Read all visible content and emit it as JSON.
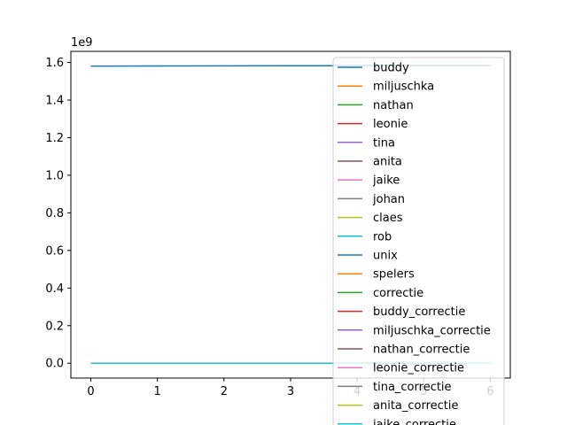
{
  "chart_data": {
    "type": "line",
    "title": "",
    "xlabel": "",
    "ylabel": "",
    "y_offset_label": "1e9",
    "xlim": [
      -0.3,
      6.3
    ],
    "ylim": [
      -0.079,
      1.659
    ],
    "x_ticks": [
      0,
      1,
      2,
      3,
      4,
      5,
      6
    ],
    "x_tick_labels": [
      "0",
      "1",
      "2",
      "3",
      "4",
      "5",
      "6"
    ],
    "y_ticks": [
      0.0,
      0.2,
      0.4,
      0.6,
      0.8,
      1.0,
      1.2,
      1.4,
      1.6
    ],
    "y_tick_labels": [
      "0.0",
      "0.2",
      "0.4",
      "0.6",
      "0.8",
      "1.0",
      "1.2",
      "1.4",
      "1.6"
    ],
    "legend_position": "upper-right",
    "grid": false,
    "x": [
      0,
      1,
      2,
      3,
      4,
      5,
      6
    ],
    "series": [
      {
        "name": "buddy",
        "color": "#1f77b4",
        "values": [
          0,
          0,
          0,
          0,
          0,
          0,
          0
        ]
      },
      {
        "name": "miljuschka",
        "color": "#ff7f0e",
        "values": [
          0,
          0,
          0,
          0,
          0,
          0,
          0
        ]
      },
      {
        "name": "nathan",
        "color": "#2ca02c",
        "values": [
          0,
          0,
          0,
          0,
          0,
          0,
          0
        ]
      },
      {
        "name": "leonie",
        "color": "#d62728",
        "values": [
          0,
          0,
          0,
          0,
          0,
          0,
          0
        ]
      },
      {
        "name": "tina",
        "color": "#9467bd",
        "values": [
          0,
          0,
          0,
          0,
          0,
          0,
          0
        ]
      },
      {
        "name": "anita",
        "color": "#8c564b",
        "values": [
          0,
          0,
          0,
          0,
          0,
          0,
          0
        ]
      },
      {
        "name": "jaike",
        "color": "#e377c2",
        "values": [
          0,
          0,
          0,
          0,
          0,
          0,
          0
        ]
      },
      {
        "name": "johan",
        "color": "#7f7f7f",
        "values": [
          0,
          0,
          0,
          0,
          0,
          0,
          0
        ]
      },
      {
        "name": "claes",
        "color": "#bcbd22",
        "values": [
          0,
          0,
          0,
          0,
          0,
          0,
          0
        ]
      },
      {
        "name": "rob",
        "color": "#17becf",
        "values": [
          0,
          0,
          0,
          0,
          0,
          0,
          0
        ]
      },
      {
        "name": "unix",
        "color": "#1f77b4",
        "values": [
          1.5805,
          1.5811,
          1.5817,
          1.5822,
          1.5828,
          1.5834,
          1.584
        ]
      },
      {
        "name": "spelers",
        "color": "#ff7f0e",
        "values": [
          0,
          0,
          0,
          0,
          0,
          0,
          0
        ]
      },
      {
        "name": "correctie",
        "color": "#2ca02c",
        "values": [
          0,
          0,
          0,
          0,
          0,
          0,
          0
        ]
      },
      {
        "name": "buddy_correctie",
        "color": "#d62728",
        "values": [
          0,
          0,
          0,
          0,
          0,
          0,
          0
        ]
      },
      {
        "name": "miljuschka_correctie",
        "color": "#9467bd",
        "values": [
          0,
          0,
          0,
          0,
          0,
          0,
          0
        ]
      },
      {
        "name": "nathan_correctie",
        "color": "#8c564b",
        "values": [
          0,
          0,
          0,
          0,
          0,
          0,
          0
        ]
      },
      {
        "name": "leonie_correctie",
        "color": "#e377c2",
        "values": [
          0,
          0,
          0,
          0,
          0,
          0,
          0
        ]
      },
      {
        "name": "tina_correctie",
        "color": "#7f7f7f",
        "values": [
          0,
          0,
          0,
          0,
          0,
          0,
          0
        ]
      },
      {
        "name": "anita_correctie",
        "color": "#bcbd22",
        "values": [
          0,
          0,
          0,
          0,
          0,
          0,
          0
        ]
      },
      {
        "name": "jaike_correctie",
        "color": "#17becf",
        "values": [
          0,
          0,
          0,
          0,
          0,
          0,
          0
        ]
      }
    ]
  }
}
